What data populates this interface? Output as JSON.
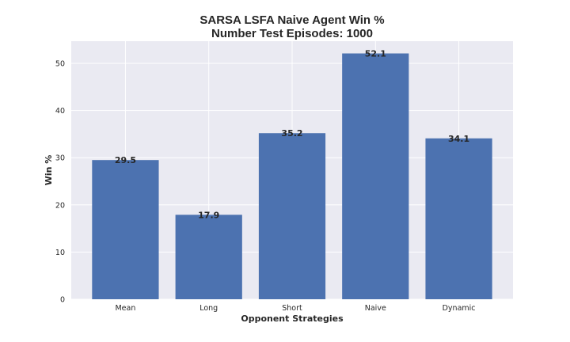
{
  "chart_data": {
    "type": "bar",
    "title": "SARSA LSFA Naive Agent Win %",
    "subtitle": "Number Test Episodes: 1000",
    "xlabel": "Opponent Strategies",
    "ylabel": "Win %",
    "categories": [
      "Mean",
      "Long",
      "Short",
      "Naive",
      "Dynamic"
    ],
    "values": [
      29.5,
      17.9,
      35.2,
      52.1,
      34.1
    ],
    "data_labels": [
      "29.5",
      "17.9",
      "35.2",
      "52.1",
      "34.1"
    ],
    "yticks": [
      0,
      10,
      20,
      30,
      40,
      50
    ],
    "ylim": [
      0,
      54.7
    ],
    "grid": true,
    "colors": {
      "bar": "#4c72b0",
      "plot_background": "#eaeaf2",
      "grid": "#ffffff",
      "text": "#262626"
    }
  }
}
